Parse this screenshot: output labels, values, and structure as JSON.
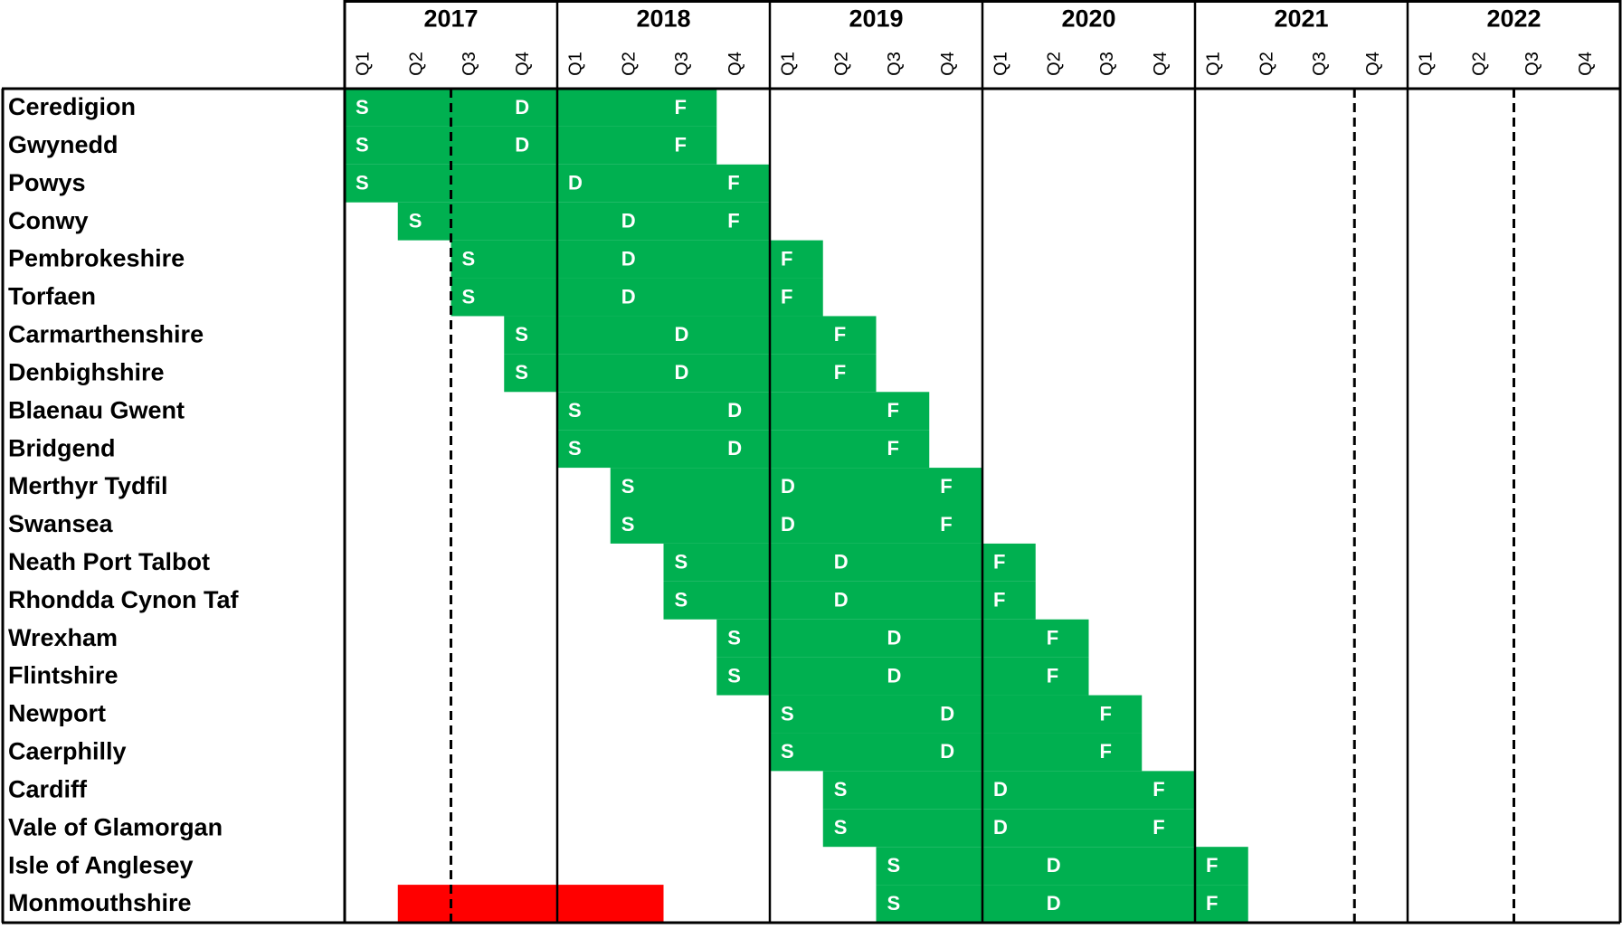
{
  "header": {
    "years": [
      "2017",
      "2018",
      "2019",
      "2020",
      "2021",
      "2022"
    ],
    "quarters": [
      "Q1",
      "Q2",
      "Q3",
      "Q4"
    ]
  },
  "table": {
    "rows": [
      {
        "label": "Ceredigion",
        "cells": [
          "S",
          null,
          null,
          "D",
          null,
          null,
          "F",
          null,
          null,
          null,
          null,
          null,
          null,
          null,
          null,
          null,
          null,
          null,
          null,
          null,
          null,
          null,
          null,
          null
        ]
      },
      {
        "label": "Gwynedd",
        "cells": [
          "S",
          null,
          null,
          "D",
          null,
          null,
          "F",
          null,
          null,
          null,
          null,
          null,
          null,
          null,
          null,
          null,
          null,
          null,
          null,
          null,
          null,
          null,
          null,
          null
        ]
      },
      {
        "label": "Powys",
        "cells": [
          "S",
          null,
          null,
          null,
          "D",
          null,
          null,
          "F",
          null,
          null,
          null,
          null,
          null,
          null,
          null,
          null,
          null,
          null,
          null,
          null,
          null,
          null,
          null,
          null
        ]
      },
      {
        "label": "Conwy",
        "cells": [
          null,
          "S",
          null,
          null,
          null,
          "D",
          null,
          "F",
          null,
          null,
          null,
          null,
          null,
          null,
          null,
          null,
          null,
          null,
          null,
          null,
          null,
          null,
          null,
          null
        ]
      },
      {
        "label": "Pembrokeshire",
        "cells": [
          null,
          null,
          "S",
          null,
          null,
          "D",
          null,
          null,
          "F",
          null,
          null,
          null,
          null,
          null,
          null,
          null,
          null,
          null,
          null,
          null,
          null,
          null,
          null,
          null
        ]
      },
      {
        "label": "Torfaen",
        "cells": [
          null,
          null,
          "S",
          null,
          null,
          "D",
          null,
          null,
          "F",
          null,
          null,
          null,
          null,
          null,
          null,
          null,
          null,
          null,
          null,
          null,
          null,
          null,
          null,
          null
        ]
      },
      {
        "label": "Carmarthenshire",
        "cells": [
          null,
          null,
          null,
          "S",
          null,
          null,
          "D",
          null,
          null,
          "F",
          null,
          null,
          null,
          null,
          null,
          null,
          null,
          null,
          null,
          null,
          null,
          null,
          null,
          null
        ]
      },
      {
        "label": "Denbighshire",
        "cells": [
          null,
          null,
          null,
          "S",
          null,
          null,
          "D",
          null,
          null,
          "F",
          null,
          null,
          null,
          null,
          null,
          null,
          null,
          null,
          null,
          null,
          null,
          null,
          null,
          null
        ]
      },
      {
        "label": "Blaenau Gwent",
        "cells": [
          null,
          null,
          null,
          null,
          "S",
          null,
          null,
          "D",
          null,
          null,
          "F",
          null,
          null,
          null,
          null,
          null,
          null,
          null,
          null,
          null,
          null,
          null,
          null,
          null
        ]
      },
      {
        "label": "Bridgend",
        "cells": [
          null,
          null,
          null,
          null,
          "S",
          null,
          null,
          "D",
          null,
          null,
          "F",
          null,
          null,
          null,
          null,
          null,
          null,
          null,
          null,
          null,
          null,
          null,
          null,
          null
        ]
      },
      {
        "label": "Merthyr Tydfil",
        "cells": [
          null,
          null,
          null,
          null,
          null,
          "S",
          null,
          null,
          "D",
          null,
          null,
          "F",
          null,
          null,
          null,
          null,
          null,
          null,
          null,
          null,
          null,
          null,
          null,
          null
        ]
      },
      {
        "label": "Swansea",
        "cells": [
          null,
          null,
          null,
          null,
          null,
          "S",
          null,
          null,
          "D",
          null,
          null,
          "F",
          null,
          null,
          null,
          null,
          null,
          null,
          null,
          null,
          null,
          null,
          null,
          null
        ]
      },
      {
        "label": "Neath Port Talbot",
        "cells": [
          null,
          null,
          null,
          null,
          null,
          null,
          "S",
          null,
          null,
          "D",
          null,
          null,
          "F",
          null,
          null,
          null,
          null,
          null,
          null,
          null,
          null,
          null,
          null,
          null
        ]
      },
      {
        "label": "Rhondda Cynon Taf",
        "cells": [
          null,
          null,
          null,
          null,
          null,
          null,
          "S",
          null,
          null,
          "D",
          null,
          null,
          "F",
          null,
          null,
          null,
          null,
          null,
          null,
          null,
          null,
          null,
          null,
          null
        ]
      },
      {
        "label": "Wrexham",
        "cells": [
          null,
          null,
          null,
          null,
          null,
          null,
          null,
          "S",
          null,
          null,
          "D",
          null,
          null,
          "F",
          null,
          null,
          null,
          null,
          null,
          null,
          null,
          null,
          null,
          null
        ]
      },
      {
        "label": "Flintshire",
        "cells": [
          null,
          null,
          null,
          null,
          null,
          null,
          null,
          "S",
          null,
          null,
          "D",
          null,
          null,
          "F",
          null,
          null,
          null,
          null,
          null,
          null,
          null,
          null,
          null,
          null
        ]
      },
      {
        "label": "Newport",
        "cells": [
          null,
          null,
          null,
          null,
          null,
          null,
          null,
          null,
          "S",
          null,
          null,
          "D",
          null,
          null,
          "F",
          null,
          null,
          null,
          null,
          null,
          null,
          null,
          null,
          null
        ]
      },
      {
        "label": "Caerphilly",
        "cells": [
          null,
          null,
          null,
          null,
          null,
          null,
          null,
          null,
          "S",
          null,
          null,
          "D",
          null,
          null,
          "F",
          null,
          null,
          null,
          null,
          null,
          null,
          null,
          null,
          null
        ]
      },
      {
        "label": "Cardiff",
        "cells": [
          null,
          null,
          null,
          null,
          null,
          null,
          null,
          null,
          null,
          "S",
          null,
          null,
          "D",
          null,
          null,
          "F",
          null,
          null,
          null,
          null,
          null,
          null,
          null,
          null
        ]
      },
      {
        "label": "Vale of Glamorgan",
        "cells": [
          null,
          null,
          null,
          null,
          null,
          null,
          null,
          null,
          null,
          "S",
          null,
          null,
          "D",
          null,
          null,
          "F",
          null,
          null,
          null,
          null,
          null,
          null,
          null,
          null
        ]
      },
      {
        "label": "Isle of Anglesey",
        "cells": [
          null,
          null,
          null,
          null,
          null,
          null,
          null,
          null,
          null,
          null,
          "S",
          null,
          null,
          "D",
          null,
          null,
          "F",
          null,
          null,
          null,
          null,
          null,
          null,
          null
        ]
      },
      {
        "label": "Monmouthshire",
        "cells": [
          null,
          null,
          null,
          null,
          null,
          null,
          null,
          null,
          null,
          null,
          "S",
          null,
          null,
          "D",
          null,
          null,
          "F",
          null,
          null,
          null,
          null,
          null,
          null,
          null
        ]
      }
    ]
  }
}
